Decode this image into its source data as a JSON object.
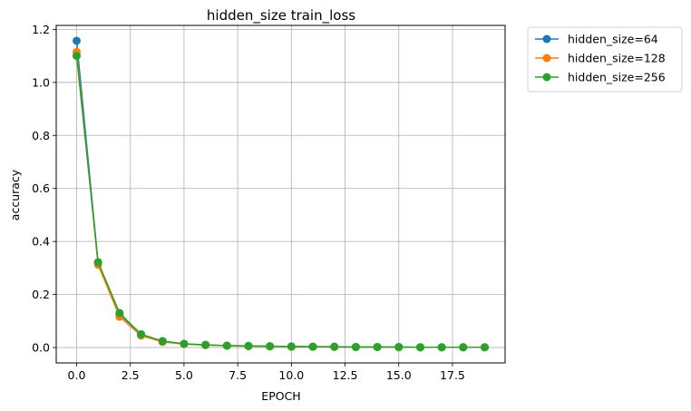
{
  "chart_data": {
    "type": "line",
    "title": "hidden_size train_loss",
    "xlabel": "EPOCH",
    "ylabel": "accuracy",
    "xlim": [
      -0.95,
      19.95
    ],
    "ylim": [
      -0.058,
      1.215
    ],
    "xticks": [
      0.0,
      2.5,
      5.0,
      7.5,
      10.0,
      12.5,
      15.0,
      17.5
    ],
    "xtick_labels": [
      "0.0",
      "2.5",
      "5.0",
      "7.5",
      "10.0",
      "12.5",
      "15.0",
      "17.5"
    ],
    "yticks": [
      0.0,
      0.2,
      0.4,
      0.6,
      0.8,
      1.0,
      1.2
    ],
    "ytick_labels": [
      "0.0",
      "0.2",
      "0.4",
      "0.6",
      "0.8",
      "1.0",
      "1.2"
    ],
    "grid": true,
    "legend_position": "outside-right-top",
    "x": [
      0,
      1,
      2,
      3,
      4,
      5,
      6,
      7,
      8,
      9,
      10,
      11,
      12,
      13,
      14,
      15,
      16,
      17,
      18,
      19
    ],
    "series": [
      {
        "name": "hidden_size=64",
        "color": "#1f77b4",
        "values": [
          1.157,
          0.318,
          0.125,
          0.05,
          0.024,
          0.014,
          0.01,
          0.007,
          0.006,
          0.005,
          0.004,
          0.003,
          0.003,
          0.002,
          0.002,
          0.002,
          0.001,
          0.001,
          0.001,
          0.001
        ]
      },
      {
        "name": "hidden_size=128",
        "color": "#ff7f0e",
        "values": [
          1.115,
          0.312,
          0.116,
          0.045,
          0.021,
          0.013,
          0.009,
          0.007,
          0.005,
          0.004,
          0.003,
          0.003,
          0.002,
          0.002,
          0.002,
          0.001,
          0.001,
          0.001,
          0.001,
          0.001
        ]
      },
      {
        "name": "hidden_size=256",
        "color": "#2ca02c",
        "values": [
          1.1,
          0.322,
          0.13,
          0.05,
          0.024,
          0.014,
          0.01,
          0.007,
          0.006,
          0.005,
          0.004,
          0.003,
          0.003,
          0.002,
          0.002,
          0.002,
          0.001,
          0.001,
          0.001,
          0.001
        ]
      }
    ]
  }
}
